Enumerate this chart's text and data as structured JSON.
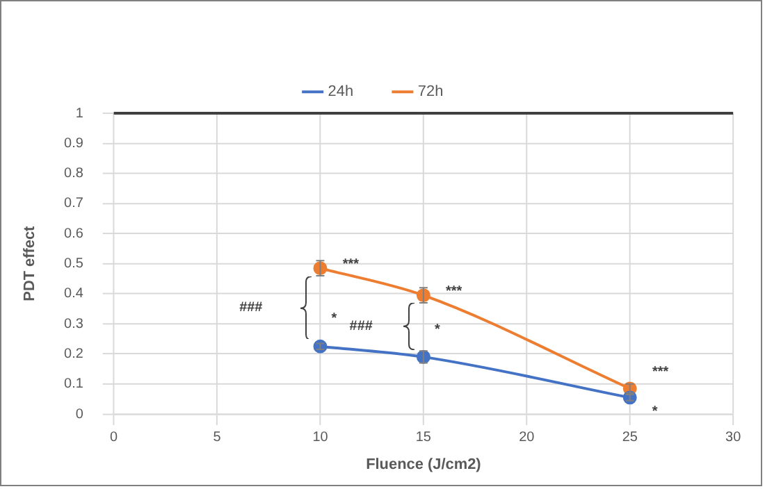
{
  "chart_data": {
    "type": "line",
    "xlabel": "Fluence (J/cm2)",
    "ylabel": "PDT effect",
    "x": [
      10,
      15,
      25
    ],
    "series": [
      {
        "name": "24h",
        "color": "#4472c4",
        "values": [
          0.225,
          0.19,
          0.055
        ],
        "errors": [
          0.01,
          0.02,
          0.01
        ]
      },
      {
        "name": "72h",
        "color": "#ed7d31",
        "values": [
          0.485,
          0.395,
          0.085
        ],
        "errors": [
          0.025,
          0.025,
          0.015
        ]
      }
    ],
    "xlim": [
      0,
      30
    ],
    "xticks": [
      0,
      5,
      10,
      15,
      20,
      25,
      30
    ],
    "ylim": [
      0,
      1
    ],
    "yticks": [
      0,
      0.1,
      0.2,
      0.3,
      0.4,
      0.5,
      0.6,
      0.7,
      0.8,
      0.9,
      1
    ],
    "grid": true,
    "legend": "top",
    "marker": "circle",
    "line_style": "solid",
    "ref_lines": [
      {
        "axis": "y",
        "value": 1,
        "color": "#404040"
      }
    ],
    "annotations": [
      {
        "text": "***",
        "x": 10,
        "y": 0.485
      },
      {
        "text": "*",
        "x": 10,
        "y": 0.225
      },
      {
        "text": "***",
        "x": 15,
        "y": 0.395
      },
      {
        "text": "*",
        "x": 15,
        "y": 0.19
      },
      {
        "text": "***",
        "x": 25,
        "y": 0.085
      },
      {
        "text": "*",
        "x": 25,
        "y": 0.055
      },
      "###",
      "###"
    ]
  }
}
